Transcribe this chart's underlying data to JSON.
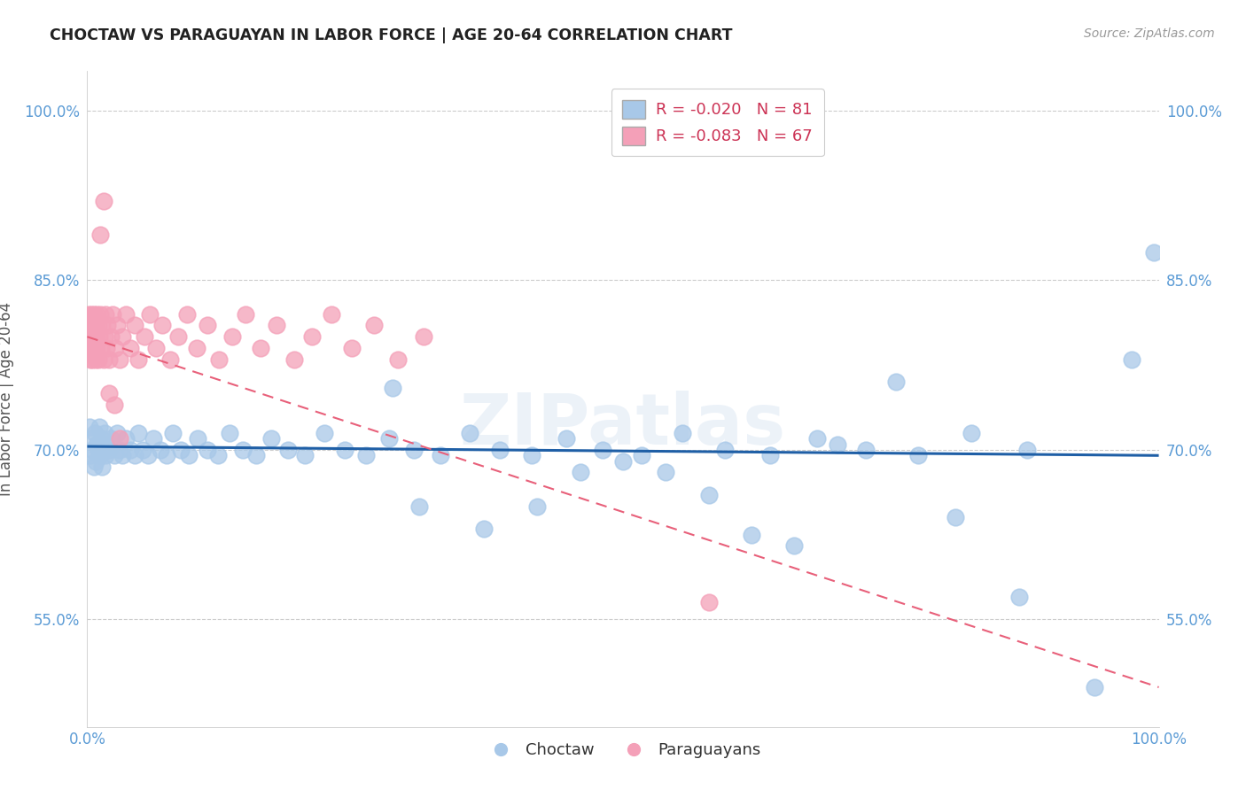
{
  "title": "CHOCTAW VS PARAGUAYAN IN LABOR FORCE | AGE 20-64 CORRELATION CHART",
  "source": "Source: ZipAtlas.com",
  "ylabel": "In Labor Force | Age 20-64",
  "xmin": 0.0,
  "xmax": 1.0,
  "ymin": 0.455,
  "ymax": 1.035,
  "ytick_positions": [
    0.55,
    0.7,
    0.85,
    1.0
  ],
  "ytick_labels": [
    "55.0%",
    "70.0%",
    "85.0%",
    "100.0%"
  ],
  "xtick_positions": [
    0.0,
    1.0
  ],
  "xtick_labels": [
    "0.0%",
    "100.0%"
  ],
  "legend_blue_label": "R = -0.020   N = 81",
  "legend_pink_label": "R = -0.083   N = 67",
  "blue_color": "#a8c8e8",
  "pink_color": "#f4a0b8",
  "blue_line_color": "#1f5fa6",
  "pink_line_color": "#e8607a",
  "watermark": "ZIPatlas",
  "blue_trend_x": [
    0.0,
    1.0
  ],
  "blue_trend_y": [
    0.703,
    0.695
  ],
  "pink_trend_x": [
    0.0,
    1.0
  ],
  "pink_trend_y": [
    0.8,
    0.49
  ],
  "blue_x": [
    0.002,
    0.003,
    0.004,
    0.005,
    0.006,
    0.007,
    0.008,
    0.009,
    0.01,
    0.011,
    0.012,
    0.013,
    0.014,
    0.015,
    0.016,
    0.017,
    0.018,
    0.02,
    0.022,
    0.025,
    0.028,
    0.03,
    0.033,
    0.036,
    0.04,
    0.044,
    0.048,
    0.052,
    0.057,
    0.062,
    0.068,
    0.074,
    0.08,
    0.087,
    0.095,
    0.103,
    0.112,
    0.122,
    0.133,
    0.145,
    0.158,
    0.172,
    0.187,
    0.203,
    0.221,
    0.24,
    0.26,
    0.282,
    0.305,
    0.33,
    0.357,
    0.385,
    0.415,
    0.447,
    0.481,
    0.517,
    0.555,
    0.595,
    0.637,
    0.681,
    0.727,
    0.775,
    0.825,
    0.877,
    0.285,
    0.31,
    0.37,
    0.42,
    0.46,
    0.5,
    0.54,
    0.58,
    0.62,
    0.66,
    0.7,
    0.755,
    0.81,
    0.87,
    0.94,
    0.975,
    0.995
  ],
  "blue_y": [
    0.72,
    0.695,
    0.71,
    0.7,
    0.685,
    0.715,
    0.69,
    0.705,
    0.7,
    0.72,
    0.695,
    0.71,
    0.685,
    0.7,
    0.715,
    0.695,
    0.705,
    0.7,
    0.71,
    0.695,
    0.715,
    0.7,
    0.695,
    0.71,
    0.7,
    0.695,
    0.715,
    0.7,
    0.695,
    0.71,
    0.7,
    0.695,
    0.715,
    0.7,
    0.695,
    0.71,
    0.7,
    0.695,
    0.715,
    0.7,
    0.695,
    0.71,
    0.7,
    0.695,
    0.715,
    0.7,
    0.695,
    0.71,
    0.7,
    0.695,
    0.715,
    0.7,
    0.695,
    0.71,
    0.7,
    0.695,
    0.715,
    0.7,
    0.695,
    0.71,
    0.7,
    0.695,
    0.715,
    0.7,
    0.755,
    0.65,
    0.63,
    0.65,
    0.68,
    0.69,
    0.68,
    0.66,
    0.625,
    0.615,
    0.705,
    0.76,
    0.64,
    0.57,
    0.49,
    0.78,
    0.875
  ],
  "pink_x": [
    0.001,
    0.001,
    0.002,
    0.002,
    0.003,
    0.003,
    0.004,
    0.004,
    0.005,
    0.005,
    0.006,
    0.006,
    0.007,
    0.007,
    0.008,
    0.008,
    0.009,
    0.009,
    0.01,
    0.01,
    0.011,
    0.012,
    0.013,
    0.014,
    0.015,
    0.016,
    0.017,
    0.018,
    0.019,
    0.02,
    0.022,
    0.024,
    0.026,
    0.028,
    0.03,
    0.033,
    0.036,
    0.04,
    0.044,
    0.048,
    0.053,
    0.058,
    0.064,
    0.07,
    0.077,
    0.085,
    0.093,
    0.102,
    0.112,
    0.123,
    0.135,
    0.148,
    0.162,
    0.177,
    0.193,
    0.21,
    0.228,
    0.247,
    0.268,
    0.29,
    0.314,
    0.02,
    0.025,
    0.03,
    0.012,
    0.015,
    0.58
  ],
  "pink_y": [
    0.8,
    0.82,
    0.79,
    0.81,
    0.78,
    0.8,
    0.82,
    0.79,
    0.81,
    0.78,
    0.8,
    0.82,
    0.79,
    0.81,
    0.78,
    0.8,
    0.82,
    0.79,
    0.81,
    0.78,
    0.8,
    0.82,
    0.79,
    0.81,
    0.78,
    0.8,
    0.82,
    0.79,
    0.81,
    0.78,
    0.8,
    0.82,
    0.79,
    0.81,
    0.78,
    0.8,
    0.82,
    0.79,
    0.81,
    0.78,
    0.8,
    0.82,
    0.79,
    0.81,
    0.78,
    0.8,
    0.82,
    0.79,
    0.81,
    0.78,
    0.8,
    0.82,
    0.79,
    0.81,
    0.78,
    0.8,
    0.82,
    0.79,
    0.81,
    0.78,
    0.8,
    0.75,
    0.74,
    0.71,
    0.89,
    0.92,
    0.565
  ]
}
